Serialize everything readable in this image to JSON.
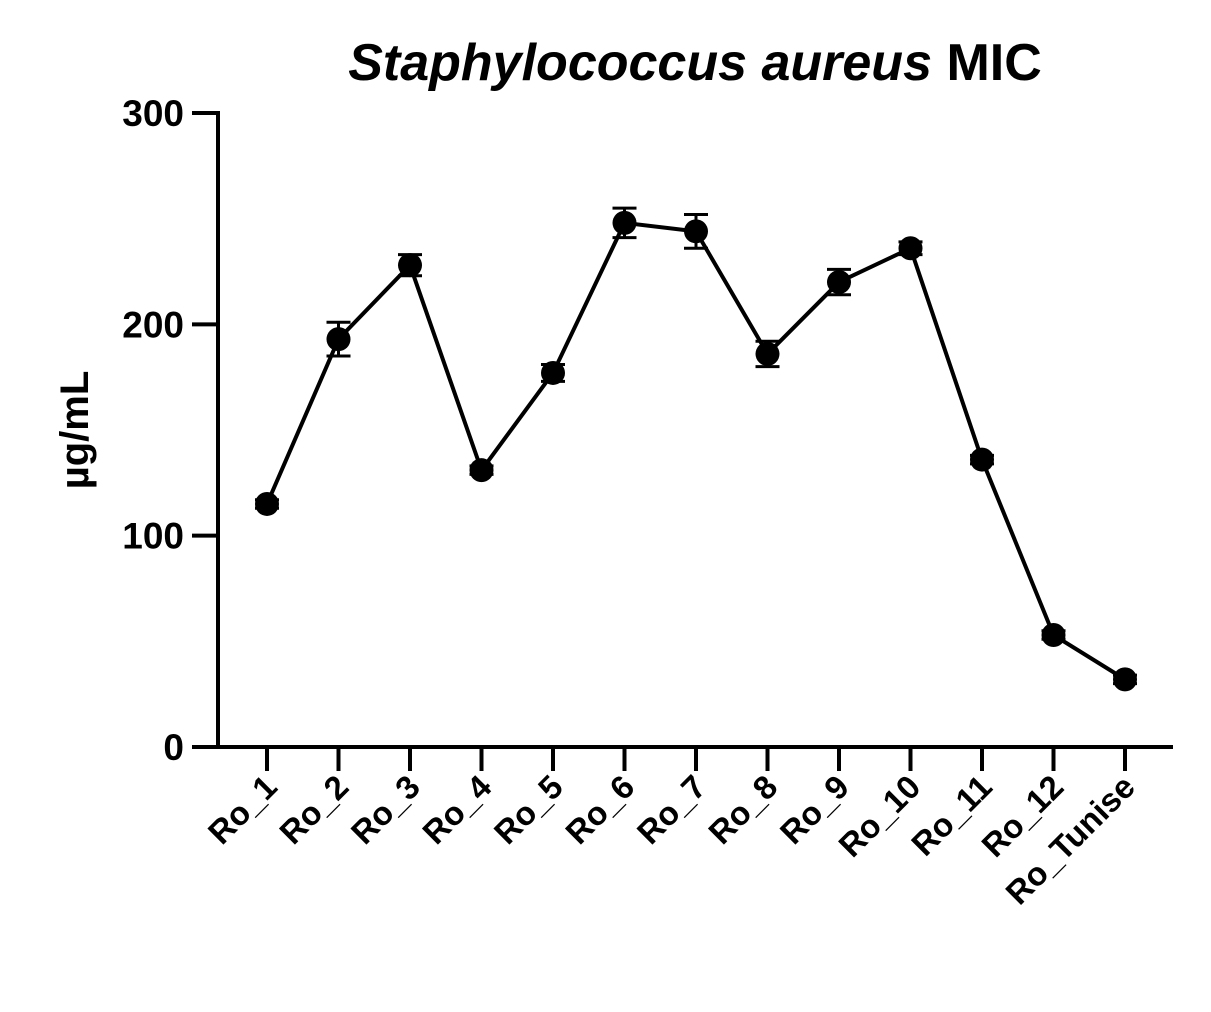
{
  "chart_data": {
    "type": "line",
    "title_italic": "Staphylococcus aureus",
    "title_rest": " MIC",
    "ylabel": "µg/mL",
    "xlabel": "",
    "ylim": [
      0,
      300
    ],
    "yticks": [
      0,
      100,
      200,
      300
    ],
    "ytick_labels": [
      "0",
      "100",
      "200",
      "300"
    ],
    "categories": [
      "Ro_1",
      "Ro_2",
      "Ro_3",
      "Ro_4",
      "Ro_5",
      "Ro_6",
      "Ro_7",
      "Ro_8",
      "Ro_9",
      "Ro_10",
      "Ro_11",
      "Ro_12",
      "Ro_Tunise"
    ],
    "values": [
      115,
      193,
      228,
      131,
      177,
      248,
      244,
      186,
      220,
      236,
      136,
      53,
      32
    ],
    "errors": [
      2,
      8,
      5,
      2,
      4,
      7,
      8,
      6,
      6,
      3,
      2,
      2,
      2
    ],
    "grid": false,
    "color": "#000000"
  }
}
